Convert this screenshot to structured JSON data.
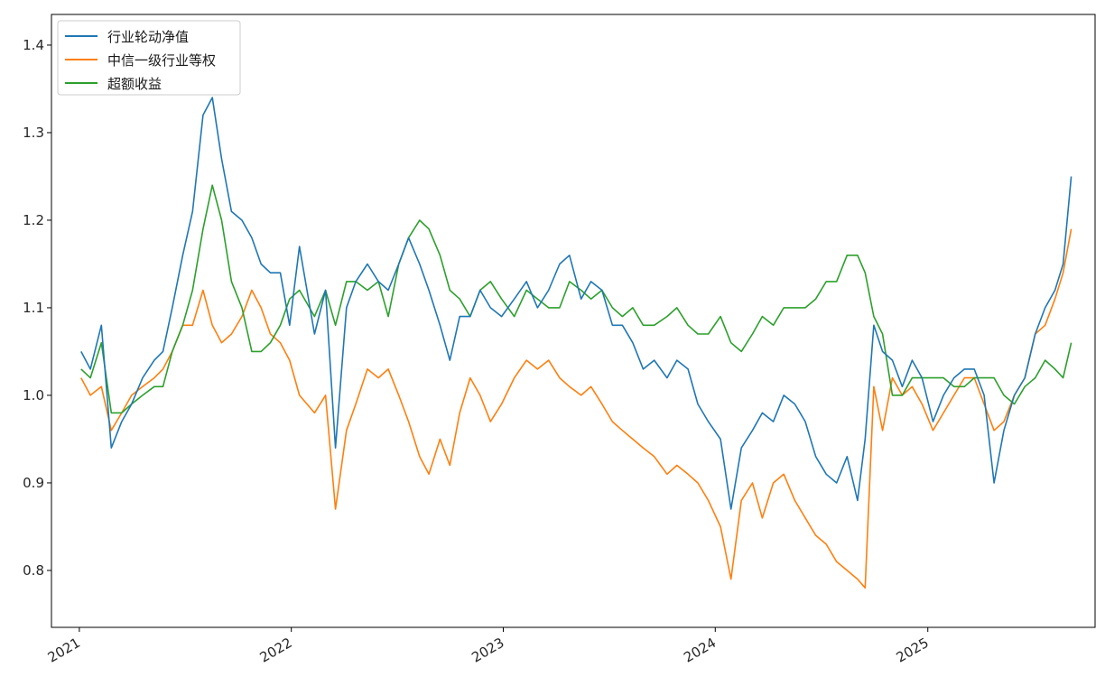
{
  "chart_data": {
    "type": "line",
    "title": "",
    "xlabel": "",
    "ylabel": "",
    "xlim": [
      "2020-11-14",
      "2025-10-16"
    ],
    "ylim": [
      0.735,
      1.435
    ],
    "x_ticks": [
      "2021",
      "2022",
      "2023",
      "2024",
      "2025"
    ],
    "y_ticks": [
      0.8,
      0.9,
      1.0,
      1.1,
      1.2,
      1.3,
      1.4
    ],
    "y_tick_labels": [
      "0.8",
      "0.9",
      "1.0",
      "1.1",
      "1.2",
      "1.3",
      "1.4"
    ],
    "grid": false,
    "legend_position": "top-left",
    "x": [
      "2021-01-04",
      "2021-01-20",
      "2021-02-08",
      "2021-02-25",
      "2021-03-15",
      "2021-04-01",
      "2021-04-20",
      "2021-05-10",
      "2021-05-25",
      "2021-06-10",
      "2021-06-28",
      "2021-07-15",
      "2021-08-02",
      "2021-08-18",
      "2021-09-03",
      "2021-09-20",
      "2021-10-08",
      "2021-10-25",
      "2021-11-10",
      "2021-11-26",
      "2021-12-13",
      "2021-12-29",
      "2022-01-15",
      "2022-02-10",
      "2022-03-01",
      "2022-03-18",
      "2022-04-06",
      "2022-04-22",
      "2022-05-12",
      "2022-05-31",
      "2022-06-17",
      "2022-07-05",
      "2022-07-22",
      "2022-08-10",
      "2022-08-26",
      "2022-09-14",
      "2022-10-01",
      "2022-10-18",
      "2022-11-05",
      "2022-11-22",
      "2022-12-10",
      "2022-12-29",
      "2023-01-20",
      "2023-02-10",
      "2023-03-01",
      "2023-03-20",
      "2023-04-08",
      "2023-04-25",
      "2023-05-15",
      "2023-06-01",
      "2023-06-20",
      "2023-07-08",
      "2023-07-25",
      "2023-08-12",
      "2023-08-30",
      "2023-09-18",
      "2023-10-10",
      "2023-10-27",
      "2023-11-15",
      "2023-12-02",
      "2023-12-20",
      "2024-01-10",
      "2024-01-28",
      "2024-02-15",
      "2024-03-05",
      "2024-03-22",
      "2024-04-10",
      "2024-04-28",
      "2024-05-17",
      "2024-06-04",
      "2024-06-22",
      "2024-07-10",
      "2024-07-28",
      "2024-08-15",
      "2024-09-02",
      "2024-09-15",
      "2024-09-30",
      "2024-10-15",
      "2024-11-01",
      "2024-11-18",
      "2024-12-05",
      "2024-12-22",
      "2025-01-10",
      "2025-01-28",
      "2025-02-15",
      "2025-03-05",
      "2025-03-22",
      "2025-04-08",
      "2025-04-25",
      "2025-05-12",
      "2025-05-30",
      "2025-06-17",
      "2025-07-05",
      "2025-07-22",
      "2025-08-08",
      "2025-08-22",
      "2025-09-05"
    ],
    "series": [
      {
        "name": "行业轮动净值",
        "color": "#1f77b4",
        "values": [
          1.05,
          1.03,
          1.08,
          0.94,
          0.97,
          0.99,
          1.02,
          1.04,
          1.05,
          1.1,
          1.16,
          1.21,
          1.32,
          1.34,
          1.27,
          1.21,
          1.2,
          1.18,
          1.15,
          1.14,
          1.14,
          1.08,
          1.17,
          1.07,
          1.12,
          0.94,
          1.1,
          1.13,
          1.15,
          1.13,
          1.12,
          1.15,
          1.18,
          1.15,
          1.12,
          1.08,
          1.04,
          1.09,
          1.09,
          1.12,
          1.1,
          1.09,
          1.11,
          1.13,
          1.1,
          1.12,
          1.15,
          1.16,
          1.11,
          1.13,
          1.12,
          1.08,
          1.08,
          1.06,
          1.03,
          1.04,
          1.02,
          1.04,
          1.03,
          0.99,
          0.97,
          0.95,
          0.87,
          0.94,
          0.96,
          0.98,
          0.97,
          1.0,
          0.99,
          0.97,
          0.93,
          0.91,
          0.9,
          0.93,
          0.88,
          0.95,
          1.08,
          1.05,
          1.04,
          1.01,
          1.04,
          1.02,
          0.97,
          1.0,
          1.02,
          1.03,
          1.03,
          1.0,
          0.9,
          0.96,
          1.0,
          1.02,
          1.07,
          1.1,
          1.12,
          1.15,
          1.25
        ]
      },
      {
        "name": "中信一级行业等权",
        "color": "#ff7f0e",
        "values": [
          1.02,
          1.0,
          1.01,
          0.96,
          0.98,
          1.0,
          1.01,
          1.02,
          1.03,
          1.05,
          1.08,
          1.08,
          1.12,
          1.08,
          1.06,
          1.07,
          1.09,
          1.12,
          1.1,
          1.07,
          1.06,
          1.04,
          1.0,
          0.98,
          1.0,
          0.87,
          0.96,
          0.99,
          1.03,
          1.02,
          1.03,
          1.0,
          0.97,
          0.93,
          0.91,
          0.95,
          0.92,
          0.98,
          1.02,
          1.0,
          0.97,
          0.99,
          1.02,
          1.04,
          1.03,
          1.04,
          1.02,
          1.01,
          1.0,
          1.01,
          0.99,
          0.97,
          0.96,
          0.95,
          0.94,
          0.93,
          0.91,
          0.92,
          0.91,
          0.9,
          0.88,
          0.85,
          0.79,
          0.88,
          0.9,
          0.86,
          0.9,
          0.91,
          0.88,
          0.86,
          0.84,
          0.83,
          0.81,
          0.8,
          0.79,
          0.78,
          1.01,
          0.96,
          1.02,
          1.0,
          1.01,
          0.99,
          0.96,
          0.98,
          1.0,
          1.02,
          1.02,
          0.99,
          0.96,
          0.97,
          1.0,
          1.02,
          1.07,
          1.08,
          1.11,
          1.14,
          1.19
        ]
      },
      {
        "name": "超额收益",
        "color": "#2ca02c",
        "values": [
          1.03,
          1.02,
          1.06,
          0.98,
          0.98,
          0.99,
          1.0,
          1.01,
          1.01,
          1.05,
          1.08,
          1.12,
          1.19,
          1.24,
          1.2,
          1.13,
          1.1,
          1.05,
          1.05,
          1.06,
          1.08,
          1.11,
          1.12,
          1.09,
          1.12,
          1.08,
          1.13,
          1.13,
          1.12,
          1.13,
          1.09,
          1.15,
          1.18,
          1.2,
          1.19,
          1.16,
          1.12,
          1.11,
          1.09,
          1.12,
          1.13,
          1.11,
          1.09,
          1.12,
          1.11,
          1.1,
          1.1,
          1.13,
          1.12,
          1.11,
          1.12,
          1.1,
          1.09,
          1.1,
          1.08,
          1.08,
          1.09,
          1.1,
          1.08,
          1.07,
          1.07,
          1.09,
          1.06,
          1.05,
          1.07,
          1.09,
          1.08,
          1.1,
          1.1,
          1.1,
          1.11,
          1.13,
          1.13,
          1.16,
          1.16,
          1.14,
          1.09,
          1.07,
          1.0,
          1.0,
          1.02,
          1.02,
          1.02,
          1.02,
          1.01,
          1.01,
          1.02,
          1.02,
          1.02,
          1.0,
          0.99,
          1.01,
          1.02,
          1.04,
          1.03,
          1.02,
          1.06
        ]
      }
    ]
  }
}
